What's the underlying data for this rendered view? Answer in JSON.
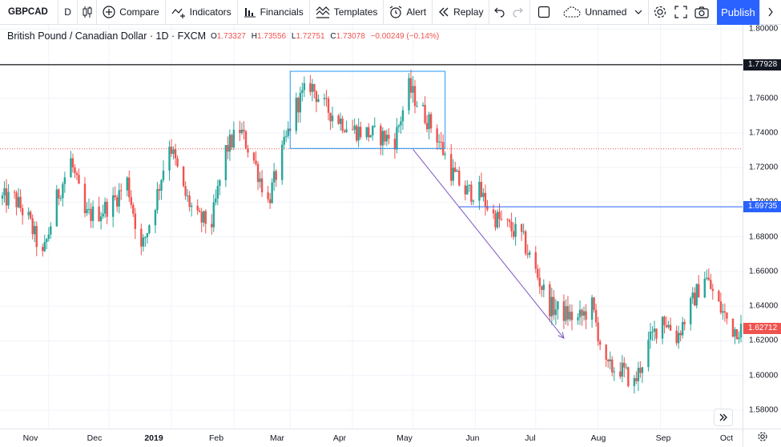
{
  "toolbar": {
    "symbol": "GBPCAD",
    "interval": "D",
    "compare": "Compare",
    "indicators": "Indicators",
    "financials": "Financials",
    "templates": "Templates",
    "alert": "Alert",
    "replay": "Replay",
    "layout_name": "Unnamed",
    "publish": "Publish"
  },
  "legend": {
    "title": "British Pound / Canadian Dollar · 1D · FXCM",
    "o_key": "O",
    "o_val": "1.73327",
    "h_key": "H",
    "h_val": "1.73556",
    "l_key": "L",
    "l_val": "1.72751",
    "c_key": "C",
    "c_val": "1.73078",
    "change": "−0.00249 (−0.14%)"
  },
  "colors": {
    "up": "#26a69a",
    "down": "#ef5350",
    "rect": "#2196f3",
    "trend_arrow": "#7e57c2",
    "hline_black": "#000000",
    "hline_blue": "#2962ff",
    "hline_red": "#ef5350"
  },
  "chart_data": {
    "type": "candlestick",
    "symbol": "GBPCAD",
    "ylim": [
      1.576,
      1.8025
    ],
    "price_ticks": [
      "1.80000",
      "1.78000",
      "1.76000",
      "1.74000",
      "1.72000",
      "1.70000",
      "1.68000",
      "1.66000",
      "1.64000",
      "1.62000",
      "1.60000",
      "1.58000"
    ],
    "time_ticks": [
      {
        "label": "Nov",
        "bold": false
      },
      {
        "label": "Dec",
        "bold": false
      },
      {
        "label": "2019",
        "bold": true
      },
      {
        "label": "Feb",
        "bold": false
      },
      {
        "label": "Mar",
        "bold": false
      },
      {
        "label": "Apr",
        "bold": false
      },
      {
        "label": "May",
        "bold": false
      },
      {
        "label": "Jun",
        "bold": false
      },
      {
        "label": "Jul",
        "bold": false
      },
      {
        "label": "Aug",
        "bold": false
      },
      {
        "label": "Sep",
        "bold": false
      },
      {
        "label": "Oct",
        "bold": false
      }
    ],
    "horizontal_lines": [
      {
        "price": 1.77928,
        "label": "1.77928",
        "color": "black"
      },
      {
        "price": 1.69735,
        "label": "1.69735",
        "color": "blue"
      },
      {
        "price": 1.7308,
        "label": "",
        "color": "red-dotted"
      }
    ],
    "last_price": "1.62712",
    "rectangle": {
      "date_start": "2019-03-01",
      "date_end": "2019-05-17",
      "price_top": 1.7755,
      "price_bottom": 1.731
    },
    "trend_arrow": {
      "date_start": "2019-05-01",
      "price_start": 1.7305,
      "date_end": "2019-07-15",
      "price_end": 1.6215
    },
    "close_path": [
      [
        "2018-10-15",
        1.702
      ],
      [
        "2018-10-22",
        1.69
      ],
      [
        "2018-10-29",
        1.668
      ],
      [
        "2018-11-05",
        1.702
      ],
      [
        "2018-11-12",
        1.724
      ],
      [
        "2018-11-19",
        1.692
      ],
      [
        "2018-11-26",
        1.694
      ],
      [
        "2018-12-03",
        1.7
      ],
      [
        "2018-12-10",
        1.712
      ],
      [
        "2018-12-17",
        1.672
      ],
      [
        "2018-12-24",
        1.7
      ],
      [
        "2018-12-31",
        1.735
      ],
      [
        "2019-01-07",
        1.706
      ],
      [
        "2019-01-14",
        1.69
      ],
      [
        "2019-01-21",
        1.688
      ],
      [
        "2019-01-28",
        1.73
      ],
      [
        "2019-02-04",
        1.742
      ],
      [
        "2019-02-11",
        1.724
      ],
      [
        "2019-02-18",
        1.7
      ],
      [
        "2019-02-25",
        1.728
      ],
      [
        "2019-03-04",
        1.756
      ],
      [
        "2019-03-11",
        1.768
      ],
      [
        "2019-03-18",
        1.755
      ],
      [
        "2019-03-25",
        1.748
      ],
      [
        "2019-04-01",
        1.742
      ],
      [
        "2019-04-08",
        1.74
      ],
      [
        "2019-04-15",
        1.738
      ],
      [
        "2019-04-22",
        1.736
      ],
      [
        "2019-04-29",
        1.766
      ],
      [
        "2019-05-06",
        1.752
      ],
      [
        "2019-05-13",
        1.738
      ],
      [
        "2019-05-20",
        1.718
      ],
      [
        "2019-05-27",
        1.706
      ],
      [
        "2019-06-03",
        1.706
      ],
      [
        "2019-06-10",
        1.692
      ],
      [
        "2019-06-17",
        1.686
      ],
      [
        "2019-06-24",
        1.68
      ],
      [
        "2019-07-01",
        1.66
      ],
      [
        "2019-07-08",
        1.64
      ],
      [
        "2019-07-15",
        1.636
      ],
      [
        "2019-07-22",
        1.632
      ],
      [
        "2019-07-29",
        1.64
      ],
      [
        "2019-08-05",
        1.604
      ],
      [
        "2019-08-12",
        1.604
      ],
      [
        "2019-08-19",
        1.595
      ],
      [
        "2019-08-26",
        1.618
      ],
      [
        "2019-09-02",
        1.634
      ],
      [
        "2019-09-09",
        1.622
      ],
      [
        "2019-09-16",
        1.64
      ],
      [
        "2019-09-23",
        1.658
      ],
      [
        "2019-09-30",
        1.64
      ],
      [
        "2019-10-07",
        1.627
      ]
    ]
  }
}
